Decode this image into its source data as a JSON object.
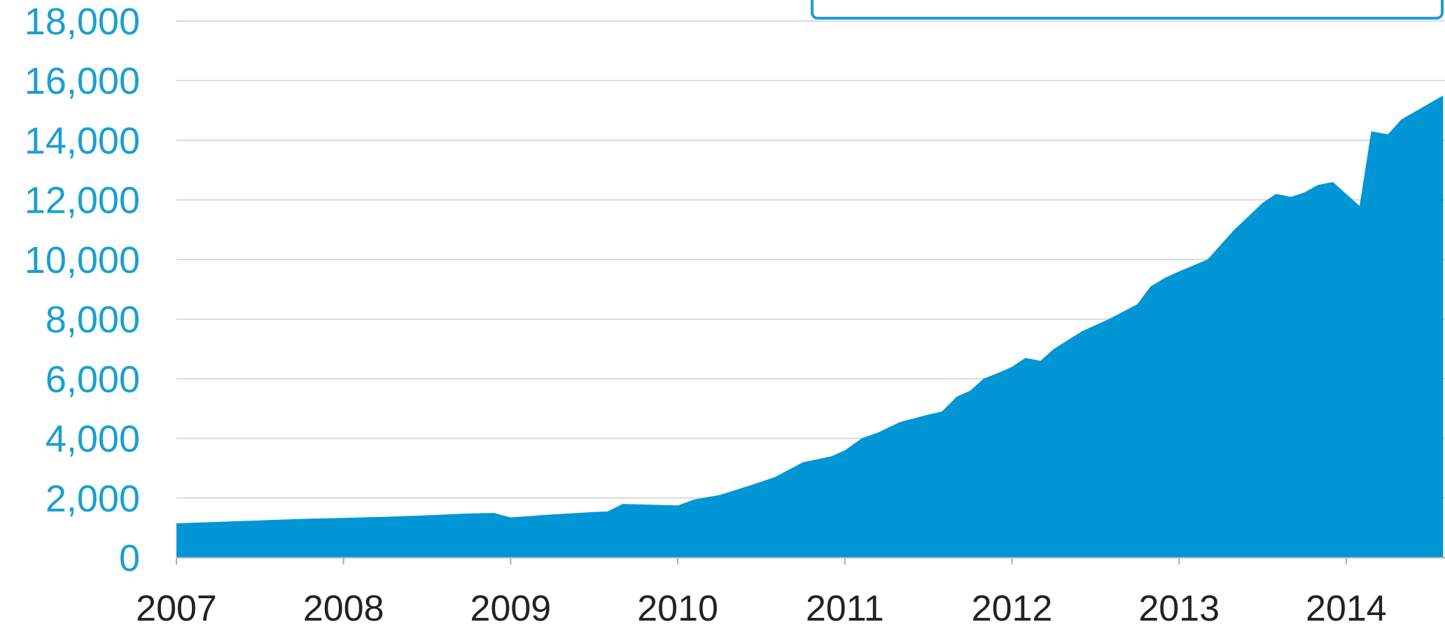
{
  "chart_data": {
    "type": "area",
    "title": "",
    "xlabel": "",
    "ylabel": "",
    "ylim": [
      0,
      18000
    ],
    "xlim": [
      2007,
      2014.58
    ],
    "grid": true,
    "y_ticks": [
      0,
      2000,
      4000,
      6000,
      8000,
      10000,
      12000,
      14000,
      16000,
      18000
    ],
    "y_tick_labels": [
      "0",
      "2,000",
      "4,000",
      "6,000",
      "8,000",
      "10,000",
      "12,000",
      "14,000",
      "16,000",
      "18,000"
    ],
    "x_ticks": [
      2007,
      2008,
      2009,
      2010,
      2011,
      2012,
      2013,
      2014
    ],
    "x_tick_labels": [
      "2007",
      "2008",
      "2009",
      "2010",
      "2011",
      "2012",
      "2013",
      "2014"
    ],
    "colors": {
      "fill": "#0096d6",
      "tick_label_y": "#1a9fd0",
      "tick_label_x": "#222222",
      "grid": "#d9d9d9",
      "axis": "#b0b0b0",
      "legend_border": "#1a9fd0"
    },
    "series": [
      {
        "x": [
          2007.0,
          2007.25,
          2007.5,
          2007.75,
          2008.0,
          2008.25,
          2008.5,
          2008.75,
          2008.9,
          2009.0,
          2009.25,
          2009.5,
          2009.58,
          2009.67,
          2009.83,
          2010.0,
          2010.1,
          2010.25,
          2010.42,
          2010.58,
          2010.75,
          2010.92,
          2011.0,
          2011.1,
          2011.2,
          2011.33,
          2011.5,
          2011.58,
          2011.67,
          2011.75,
          2011.83,
          2011.92,
          2012.0,
          2012.08,
          2012.17,
          2012.25,
          2012.42,
          2012.58,
          2012.75,
          2012.83,
          2012.92,
          2013.0,
          2013.17,
          2013.33,
          2013.5,
          2013.58,
          2013.67,
          2013.75,
          2013.83,
          2013.92,
          2014.0,
          2014.08,
          2014.15,
          2014.25,
          2014.33,
          2014.58
        ],
        "values": [
          1150,
          1200,
          1250,
          1300,
          1330,
          1370,
          1420,
          1480,
          1500,
          1350,
          1450,
          1530,
          1550,
          1800,
          1780,
          1750,
          1950,
          2100,
          2400,
          2700,
          3200,
          3400,
          3600,
          4000,
          4200,
          4550,
          4800,
          4900,
          5400,
          5600,
          6000,
          6200,
          6400,
          6700,
          6600,
          7000,
          7600,
          8000,
          8500,
          9100,
          9400,
          9600,
          10000,
          11000,
          11900,
          12200,
          12100,
          12250,
          12500,
          12600,
          12200,
          11800,
          14300,
          14200,
          14700,
          15500
        ]
      }
    ]
  }
}
